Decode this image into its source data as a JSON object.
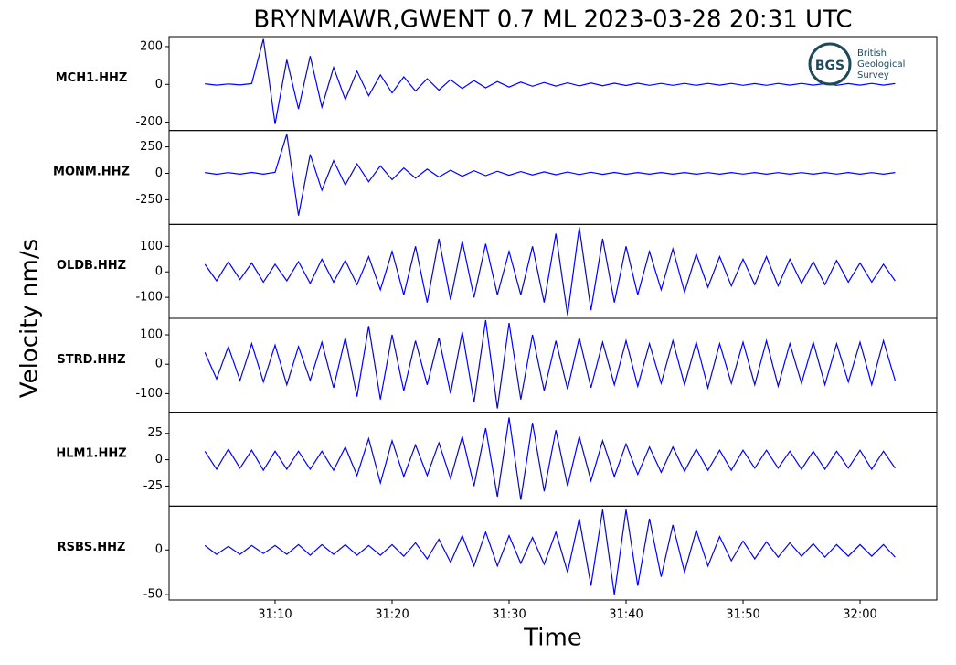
{
  "chart_data": {
    "type": "line",
    "title": "BRYNMAWR,GWENT 0.7 ML   2023-03-28 20:31 UTC",
    "xlabel": "Time",
    "ylabel": "Velocity nm/s",
    "color": "#0000ff",
    "xlim": [
      0.94,
      66.56
    ],
    "xticks": [
      {
        "value": 10,
        "label": "31:10"
      },
      {
        "value": 20,
        "label": "31:20"
      },
      {
        "value": 30,
        "label": "31:30"
      },
      {
        "value": 40,
        "label": "31:40"
      },
      {
        "value": 50,
        "label": "31:50"
      },
      {
        "value": 60,
        "label": "32:00"
      }
    ],
    "x": [
      4,
      5,
      6,
      7,
      8,
      9,
      10,
      11,
      12,
      13,
      14,
      15,
      16,
      17,
      18,
      19,
      20,
      21,
      22,
      23,
      24,
      25,
      26,
      27,
      28,
      29,
      30,
      31,
      32,
      33,
      34,
      35,
      36,
      37,
      38,
      39,
      40,
      41,
      42,
      43,
      44,
      45,
      46,
      47,
      48,
      49,
      50,
      51,
      52,
      53,
      54,
      55,
      56,
      57,
      58,
      59,
      60,
      61,
      62,
      63
    ],
    "series": [
      {
        "name": "MCH1.HHZ",
        "ylim": [
          -244,
          253
        ],
        "yticks": [
          -200,
          0,
          200
        ],
        "values": [
          3,
          -4,
          2,
          -3,
          4,
          240,
          -210,
          130,
          -130,
          150,
          -120,
          90,
          -80,
          70,
          -60,
          50,
          -45,
          40,
          -35,
          30,
          -30,
          25,
          -22,
          20,
          -18,
          15,
          -14,
          12,
          -10,
          10,
          -9,
          8,
          -8,
          7,
          -7,
          6,
          -6,
          6,
          -5,
          5,
          -5,
          5,
          -5,
          5,
          -4,
          5,
          -5,
          4,
          -5,
          5,
          -4,
          5,
          -4,
          4,
          -5,
          4,
          -4,
          5,
          -4,
          4
        ]
      },
      {
        "name": "MONM.HHZ",
        "ylim": [
          -483,
          405
        ],
        "yticks": [
          -250,
          0,
          250
        ],
        "values": [
          8,
          -9,
          7,
          -8,
          9,
          -8,
          10,
          370,
          -400,
          180,
          -160,
          120,
          -110,
          90,
          -80,
          70,
          -60,
          50,
          -45,
          40,
          -35,
          30,
          -28,
          25,
          -22,
          20,
          -18,
          16,
          -15,
          14,
          -13,
          12,
          -11,
          10,
          -10,
          9,
          -9,
          8,
          -8,
          8,
          -8,
          8,
          -8,
          7,
          -8,
          8,
          -7,
          8,
          -8,
          7,
          -8,
          7,
          -8,
          8,
          -7,
          8,
          -8,
          7,
          -8,
          8
        ]
      },
      {
        "name": "OLDB.HHZ",
        "ylim": [
          -182,
          186
        ],
        "yticks": [
          -100,
          0,
          100
        ],
        "values": [
          30,
          -35,
          40,
          -30,
          35,
          -40,
          30,
          -35,
          40,
          -45,
          50,
          -40,
          45,
          -50,
          60,
          -70,
          80,
          -90,
          100,
          -120,
          130,
          -110,
          120,
          -100,
          110,
          -90,
          80,
          -90,
          100,
          -120,
          150,
          -170,
          175,
          -150,
          130,
          -120,
          100,
          -90,
          80,
          -70,
          90,
          -80,
          70,
          -60,
          60,
          -55,
          50,
          -50,
          60,
          -55,
          50,
          -45,
          40,
          -50,
          45,
          -40,
          35,
          -40,
          30,
          -35
        ]
      },
      {
        "name": "STRD.HHZ",
        "ylim": [
          -163,
          156
        ],
        "yticks": [
          -100,
          0,
          100
        ],
        "values": [
          40,
          -50,
          60,
          -55,
          70,
          -60,
          65,
          -70,
          60,
          -55,
          75,
          -80,
          90,
          -110,
          130,
          -120,
          100,
          -90,
          80,
          -70,
          90,
          -100,
          110,
          -130,
          150,
          -150,
          140,
          -120,
          100,
          -90,
          80,
          -85,
          90,
          -80,
          75,
          -70,
          80,
          -75,
          70,
          -65,
          80,
          -70,
          75,
          -80,
          70,
          -65,
          75,
          -70,
          80,
          -75,
          70,
          -65,
          75,
          -70,
          70,
          -60,
          75,
          -70,
          80,
          -55
        ]
      },
      {
        "name": "HLM1.HHZ",
        "ylim": [
          -44,
          45
        ],
        "yticks": [
          -25,
          0,
          25
        ],
        "values": [
          8,
          -9,
          10,
          -8,
          9,
          -10,
          8,
          -9,
          8,
          -9,
          8,
          -10,
          12,
          -15,
          20,
          -22,
          18,
          -16,
          14,
          -15,
          16,
          -18,
          22,
          -25,
          30,
          -35,
          40,
          -38,
          35,
          -30,
          28,
          -25,
          22,
          -20,
          18,
          -16,
          15,
          -14,
          12,
          -12,
          12,
          -11,
          10,
          -10,
          9,
          -10,
          9,
          -8,
          9,
          -8,
          8,
          -9,
          8,
          -9,
          8,
          -8,
          9,
          -9,
          8,
          -8
        ]
      },
      {
        "name": "RSBS.HHZ",
        "ylim": [
          -56,
          49
        ],
        "yticks": [
          -50,
          0
        ],
        "values": [
          5,
          -5,
          4,
          -5,
          5,
          -4,
          5,
          -5,
          6,
          -6,
          6,
          -5,
          6,
          -6,
          5,
          -6,
          6,
          -7,
          8,
          -10,
          12,
          -14,
          16,
          -18,
          20,
          -18,
          16,
          -15,
          14,
          -16,
          20,
          -25,
          35,
          -40,
          45,
          -50,
          45,
          -40,
          35,
          -30,
          28,
          -25,
          22,
          -18,
          15,
          -12,
          10,
          -10,
          9,
          -8,
          8,
          -7,
          7,
          -8,
          6,
          -7,
          6,
          -7,
          6,
          -8
        ]
      }
    ]
  },
  "logo": {
    "abbr": "BGS",
    "lines": [
      "British",
      "Geological",
      "Survey"
    ]
  }
}
